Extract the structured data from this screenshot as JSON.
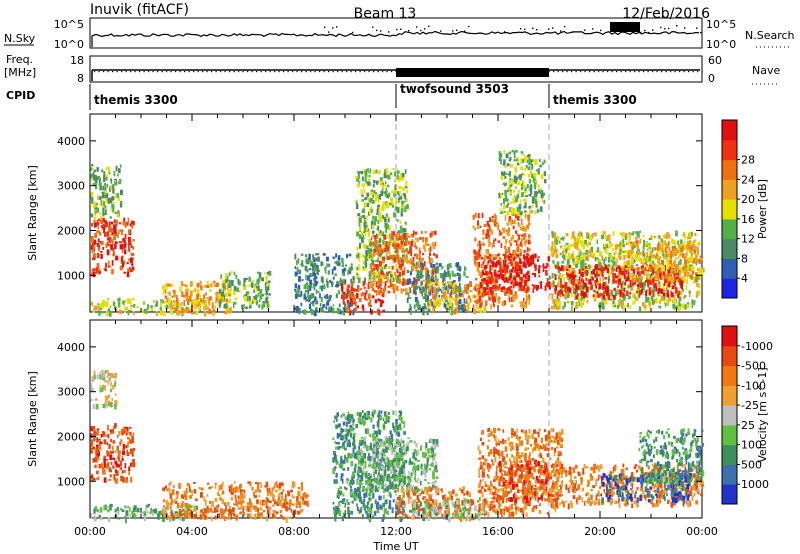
{
  "header": {
    "station": "Inuvik (fitACF)",
    "beam": "Beam 13",
    "date": "12/Feb/2016"
  },
  "summary_panels": {
    "nsky_label": "N.Sky",
    "nsky_ticks": [
      "10^5",
      "10^0"
    ],
    "nsearch_label": "N.Search",
    "nsearch_ticks": [
      "10^5",
      "10^0"
    ],
    "freq_label": "Freq.",
    "freq_unit": "[MHz]",
    "freq_ticks": [
      "18",
      "8"
    ],
    "nave_label": "Nave",
    "nave_ticks": [
      "60",
      "0"
    ],
    "cpid_label": "CPID",
    "cpid_segments": [
      {
        "name": "themis 3300",
        "start_h": 0,
        "end_h": 12
      },
      {
        "name": "twofsound 3503",
        "start_h": 12,
        "end_h": 18
      },
      {
        "name": "themis 3300",
        "start_h": 18,
        "end_h": 24
      }
    ]
  },
  "chart_data": [
    {
      "type": "heatmap",
      "ylabel": "Slant Range [km]",
      "xlabel": "Time UT",
      "x_ticks": [
        "00:00",
        "04:00",
        "08:00",
        "12:00",
        "16:00",
        "20:00",
        "00:00"
      ],
      "x_range_hours": [
        0,
        24
      ],
      "y_ticks": [
        1000,
        2000,
        3000,
        4000
      ],
      "y_range_km": [
        180,
        4600
      ],
      "colorbar_label": "Power [dB]",
      "colorbar_ticks": [
        "4",
        "8",
        "12",
        "16",
        "20",
        "24",
        "28"
      ],
      "colorbar_colors": [
        "#1d24e6",
        "#2e5fb5",
        "#4b8a63",
        "#52b046",
        "#e6e000",
        "#f0a020",
        "#f07010",
        "#f03010",
        "#e10f0f"
      ],
      "vertical_markers_h": [
        12,
        18
      ],
      "scatter_patches": [
        {
          "h0": 0.0,
          "h1": 1.7,
          "r0": 1050,
          "r1": 2300,
          "level": 7
        },
        {
          "h0": 0.0,
          "h1": 1.2,
          "r0": 2300,
          "r1": 3500,
          "level": 3
        },
        {
          "h0": 0.0,
          "h1": 4.5,
          "r0": 180,
          "r1": 500,
          "level": 4
        },
        {
          "h0": 2.8,
          "h1": 5.5,
          "r0": 200,
          "r1": 900,
          "level": 5
        },
        {
          "h0": 5.0,
          "h1": 7.0,
          "r0": 300,
          "r1": 1100,
          "level": 3
        },
        {
          "h0": 8.0,
          "h1": 10.3,
          "r0": 200,
          "r1": 1500,
          "level": 2
        },
        {
          "h0": 9.8,
          "h1": 11.6,
          "r0": 200,
          "r1": 900,
          "level": 7
        },
        {
          "h0": 10.4,
          "h1": 12.4,
          "r0": 900,
          "r1": 3400,
          "level": 3
        },
        {
          "h0": 11.0,
          "h1": 13.6,
          "r0": 650,
          "r1": 2000,
          "level": 6
        },
        {
          "h0": 12.4,
          "h1": 14.8,
          "r0": 200,
          "r1": 1300,
          "level": 2
        },
        {
          "h0": 13.2,
          "h1": 15.5,
          "r0": 250,
          "r1": 900,
          "level": 5
        },
        {
          "h0": 15.0,
          "h1": 17.2,
          "r0": 350,
          "r1": 2400,
          "level": 6
        },
        {
          "h0": 15.2,
          "h1": 18.0,
          "r0": 700,
          "r1": 1500,
          "level": 8
        },
        {
          "h0": 16.0,
          "h1": 17.8,
          "r0": 2400,
          "r1": 3800,
          "level": 3
        },
        {
          "h0": 18.0,
          "h1": 23.9,
          "r0": 300,
          "r1": 2000,
          "level": 4
        },
        {
          "h0": 18.2,
          "h1": 23.2,
          "r0": 550,
          "r1": 1250,
          "level": 8
        },
        {
          "h0": 21.0,
          "h1": 24.0,
          "r0": 900,
          "r1": 1800,
          "level": 5
        }
      ]
    },
    {
      "type": "heatmap",
      "ylabel": "Slant Range [km]",
      "xlabel": "Time UT",
      "x_ticks": [
        "00:00",
        "04:00",
        "08:00",
        "12:00",
        "16:00",
        "20:00",
        "00:00"
      ],
      "x_range_hours": [
        0,
        24
      ],
      "y_ticks": [
        1000,
        2000,
        3000,
        4000
      ],
      "y_range_km": [
        180,
        4600
      ],
      "colorbar_label": "Velocity [m s^-1]",
      "colorbar_ticks": [
        "1000",
        "500",
        "100",
        "25",
        "-25",
        "-100",
        "-500",
        "-1000"
      ],
      "colorbar_colors": [
        "#2233cc",
        "#3b6fb0",
        "#3f8f5a",
        "#60c040",
        "#bfbfbf",
        "#f0a030",
        "#f07a10",
        "#e84a10",
        "#e10f0f"
      ],
      "vertical_markers_h": [
        12,
        18
      ],
      "scatter_patches": [
        {
          "h0": 0.0,
          "h1": 1.7,
          "r0": 1050,
          "r1": 2300,
          "level": 7
        },
        {
          "h0": 0.0,
          "h1": 1.0,
          "r0": 2700,
          "r1": 3500,
          "level": 4
        },
        {
          "h0": 0.0,
          "h1": 4.5,
          "r0": 180,
          "r1": 500,
          "level": 3
        },
        {
          "h0": 2.8,
          "h1": 8.5,
          "r0": 200,
          "r1": 1000,
          "level": 6
        },
        {
          "h0": 9.5,
          "h1": 12.3,
          "r0": 200,
          "r1": 2600,
          "level": 2
        },
        {
          "h0": 10.5,
          "h1": 13.6,
          "r0": 800,
          "r1": 2000,
          "level": 3
        },
        {
          "h0": 12.0,
          "h1": 15.0,
          "r0": 200,
          "r1": 900,
          "level": 6
        },
        {
          "h0": 12.5,
          "h1": 15.5,
          "r0": 200,
          "r1": 600,
          "level": 3
        },
        {
          "h0": 15.2,
          "h1": 18.5,
          "r0": 300,
          "r1": 2200,
          "level": 6
        },
        {
          "h0": 16.0,
          "h1": 18.0,
          "r0": 600,
          "r1": 1500,
          "level": 7
        },
        {
          "h0": 18.0,
          "h1": 24.0,
          "r0": 500,
          "r1": 1400,
          "level": 6
        },
        {
          "h0": 20.0,
          "h1": 23.5,
          "r0": 600,
          "r1": 1200,
          "level": 1
        },
        {
          "h0": 21.5,
          "h1": 24.0,
          "r0": 1000,
          "r1": 2200,
          "level": 2
        }
      ]
    }
  ]
}
